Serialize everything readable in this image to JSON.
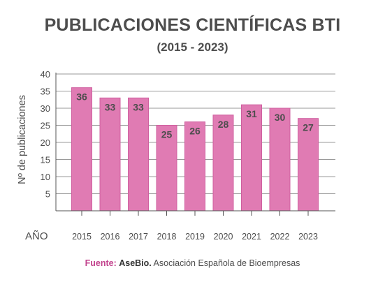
{
  "chart_data": {
    "type": "bar",
    "title": "PUBLICACIONES CIENTÍFICAS BTI",
    "subtitle": "(2015 - 2023)",
    "xlabel": "AÑO",
    "ylabel": "Nº de publicaciones",
    "categories": [
      "2015",
      "2016",
      "2017",
      "2018",
      "2019",
      "2020",
      "2021",
      "2022",
      "2023"
    ],
    "values": [
      36,
      33,
      33,
      25,
      26,
      28,
      31,
      30,
      27
    ],
    "ylim": [
      0,
      40
    ],
    "yticks": [
      5,
      10,
      15,
      20,
      25,
      30,
      35,
      40
    ],
    "grid": true,
    "colors": {
      "bar": "#e07bb3",
      "bar_edge": "#cf5f9f",
      "grid": "#9a9a9a",
      "axis_text": "#4d4d4d",
      "label_text": "#4d4d4d"
    }
  },
  "source": {
    "label": "Fuente:",
    "org": "AseBio.",
    "text": " Asociación Española de Bioempresas"
  }
}
